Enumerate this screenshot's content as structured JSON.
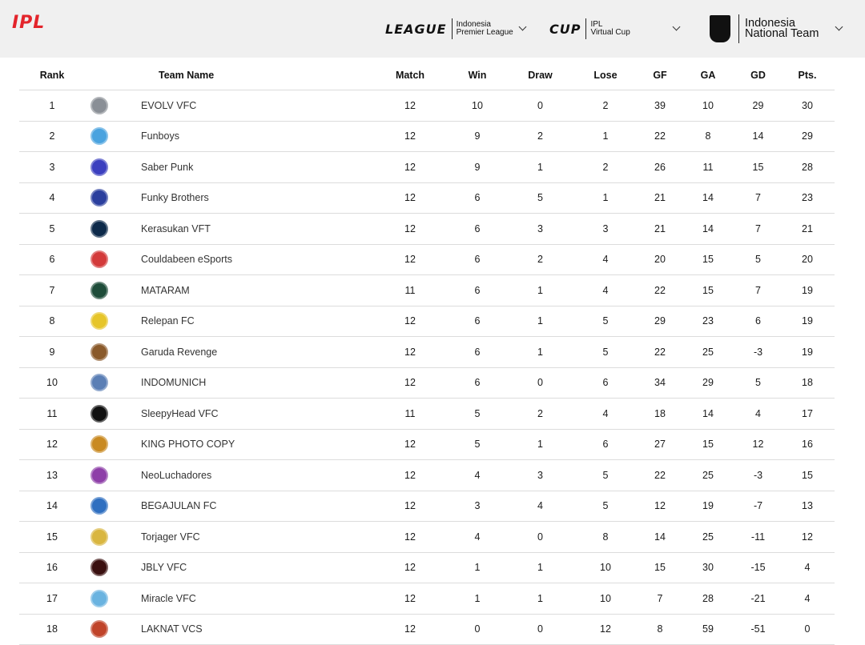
{
  "header": {
    "logo": "IPL",
    "league": {
      "word": "LEAGUE",
      "line1": "Indonesia",
      "line2": "Premier League"
    },
    "cup": {
      "word": "CUP",
      "line1": "IPL",
      "line2": "Virtual Cup"
    },
    "national": {
      "line1": "Indonesia",
      "line2": "National Team"
    }
  },
  "table": {
    "columns": [
      "Rank",
      "Team Name",
      "Match",
      "Win",
      "Draw",
      "Lose",
      "GF",
      "GA",
      "GD",
      "Pts."
    ],
    "rows": [
      {
        "rank": "1",
        "team": "EVOLV VFC",
        "match": "12",
        "win": "10",
        "draw": "0",
        "lose": "2",
        "gf": "39",
        "ga": "10",
        "gd": "29",
        "pts": "30",
        "logo_color": "#8a8f96"
      },
      {
        "rank": "2",
        "team": "Funboys",
        "match": "12",
        "win": "9",
        "draw": "2",
        "lose": "1",
        "gf": "22",
        "ga": "8",
        "gd": "14",
        "pts": "29",
        "logo_color": "#4aa3df"
      },
      {
        "rank": "3",
        "team": "Saber Punk",
        "match": "12",
        "win": "9",
        "draw": "1",
        "lose": "2",
        "gf": "26",
        "ga": "11",
        "gd": "15",
        "pts": "28",
        "logo_color": "#3b3fbf"
      },
      {
        "rank": "4",
        "team": "Funky Brothers",
        "match": "12",
        "win": "6",
        "draw": "5",
        "lose": "1",
        "gf": "21",
        "ga": "14",
        "gd": "7",
        "pts": "23",
        "logo_color": "#2b3f9e"
      },
      {
        "rank": "5",
        "team": "Kerasukan VFT",
        "match": "12",
        "win": "6",
        "draw": "3",
        "lose": "3",
        "gf": "21",
        "ga": "14",
        "gd": "7",
        "pts": "21",
        "logo_color": "#0d2a4a"
      },
      {
        "rank": "6",
        "team": "Couldabeen eSports",
        "match": "12",
        "win": "6",
        "draw": "2",
        "lose": "4",
        "gf": "20",
        "ga": "15",
        "gd": "5",
        "pts": "20",
        "logo_color": "#d33a3a"
      },
      {
        "rank": "7",
        "team": "MATARAM",
        "match": "11",
        "win": "6",
        "draw": "1",
        "lose": "4",
        "gf": "22",
        "ga": "15",
        "gd": "7",
        "pts": "19",
        "logo_color": "#1f4d3a"
      },
      {
        "rank": "8",
        "team": "Relepan FC",
        "match": "12",
        "win": "6",
        "draw": "1",
        "lose": "5",
        "gf": "29",
        "ga": "23",
        "gd": "6",
        "pts": "19",
        "logo_color": "#e6c52a"
      },
      {
        "rank": "9",
        "team": "Garuda Revenge",
        "match": "12",
        "win": "6",
        "draw": "1",
        "lose": "5",
        "gf": "22",
        "ga": "25",
        "gd": "-3",
        "pts": "19",
        "logo_color": "#8a5a2b"
      },
      {
        "rank": "10",
        "team": "INDOMUNICH",
        "match": "12",
        "win": "6",
        "draw": "0",
        "lose": "6",
        "gf": "34",
        "ga": "29",
        "gd": "5",
        "pts": "18",
        "logo_color": "#5b7fb5"
      },
      {
        "rank": "11",
        "team": "SleepyHead VFC",
        "match": "11",
        "win": "5",
        "draw": "2",
        "lose": "4",
        "gf": "18",
        "ga": "14",
        "gd": "4",
        "pts": "17",
        "logo_color": "#111111"
      },
      {
        "rank": "12",
        "team": "KING PHOTO COPY",
        "match": "12",
        "win": "5",
        "draw": "1",
        "lose": "6",
        "gf": "27",
        "ga": "15",
        "gd": "12",
        "pts": "16",
        "logo_color": "#c98a22"
      },
      {
        "rank": "13",
        "team": "NeoLuchadores",
        "match": "12",
        "win": "4",
        "draw": "3",
        "lose": "5",
        "gf": "22",
        "ga": "25",
        "gd": "-3",
        "pts": "15",
        "logo_color": "#8e3fa8"
      },
      {
        "rank": "14",
        "team": "BEGAJULAN FC",
        "match": "12",
        "win": "3",
        "draw": "4",
        "lose": "5",
        "gf": "12",
        "ga": "19",
        "gd": "-7",
        "pts": "13",
        "logo_color": "#2f6fc0"
      },
      {
        "rank": "15",
        "team": "Torjager VFC",
        "match": "12",
        "win": "4",
        "draw": "0",
        "lose": "8",
        "gf": "14",
        "ga": "25",
        "gd": "-11",
        "pts": "12",
        "logo_color": "#d9b640"
      },
      {
        "rank": "16",
        "team": "JBLY VFC",
        "match": "12",
        "win": "1",
        "draw": "1",
        "lose": "10",
        "gf": "15",
        "ga": "30",
        "gd": "-15",
        "pts": "4",
        "logo_color": "#3a1010"
      },
      {
        "rank": "17",
        "team": "Miracle VFC",
        "match": "12",
        "win": "1",
        "draw": "1",
        "lose": "10",
        "gf": "7",
        "ga": "28",
        "gd": "-21",
        "pts": "4",
        "logo_color": "#6ab3e0"
      },
      {
        "rank": "18",
        "team": "LAKNAT VCS",
        "match": "12",
        "win": "0",
        "draw": "0",
        "lose": "12",
        "gf": "8",
        "ga": "59",
        "gd": "-51",
        "pts": "0",
        "logo_color": "#c0442a"
      }
    ]
  }
}
